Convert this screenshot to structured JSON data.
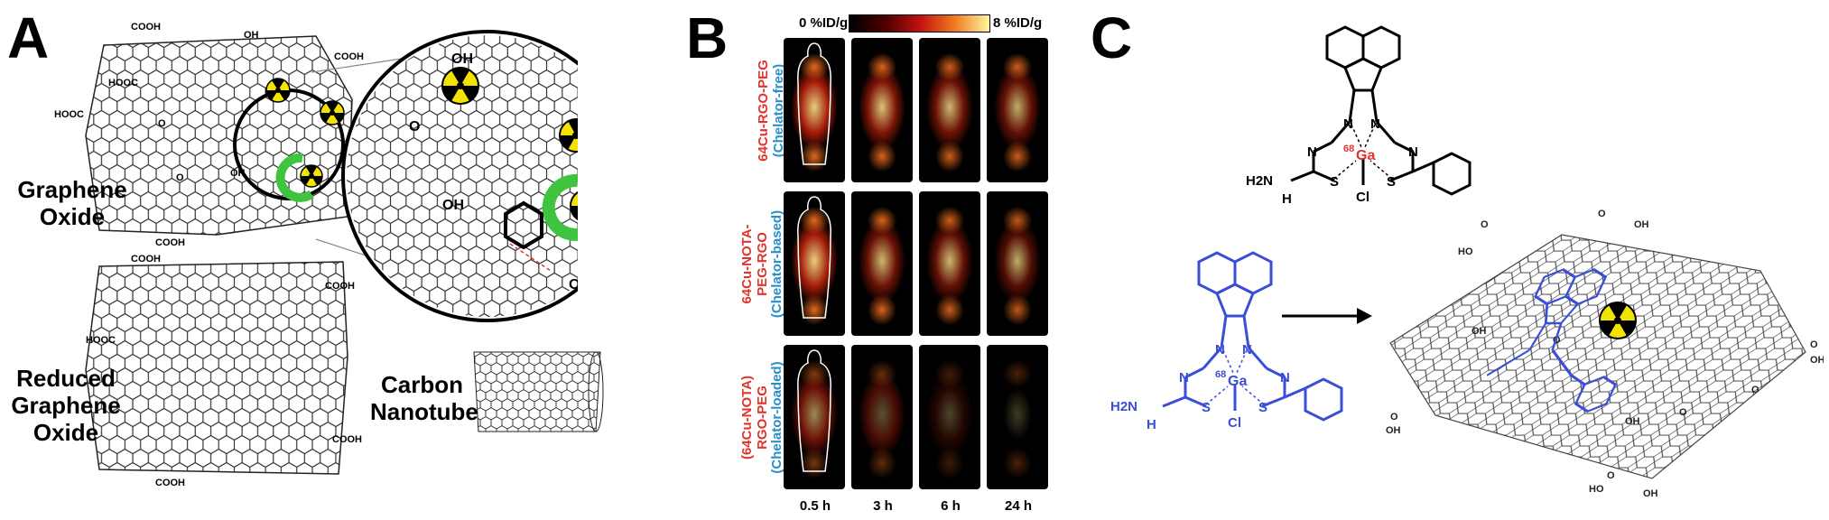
{
  "panelA": {
    "letter": "A",
    "graphene_oxide": [
      "Graphene",
      "Oxide"
    ],
    "reduced_graphene_oxide": [
      "Reduced",
      "Graphene",
      "Oxide"
    ],
    "carbon_nanotube": [
      "Carbon",
      "Nanotube"
    ],
    "groups": [
      "COOH",
      "OH",
      "O"
    ]
  },
  "panelB": {
    "letter": "B",
    "scale_min": "0 %ID/g",
    "scale_max": "8 %ID/g",
    "rows": [
      {
        "line1": "64Cu-RGO-PEG",
        "line2": "(Chelator-free)"
      },
      {
        "line1": "64Cu-NOTA-",
        "line1b": "PEG-RGO",
        "line2": "(Chelator-based)"
      },
      {
        "line1": "(64Cu-NOTA)",
        "line1b": "RGO-PEG",
        "line2": "(Chelator-loaded)"
      }
    ],
    "times": [
      "0.5 h",
      "3 h",
      "6 h",
      "24 h"
    ]
  },
  "panelC": {
    "letter": "C",
    "complex_labels": {
      "h2n": "H2N",
      "n": "N",
      "h": "H",
      "s": "S",
      "cl": "Cl",
      "ga": "Ga",
      "iso": "68"
    },
    "colors": {
      "complex_top": "#000000",
      "complex_blue": "#3a4fd6",
      "ga_red": "#e0342c"
    }
  }
}
